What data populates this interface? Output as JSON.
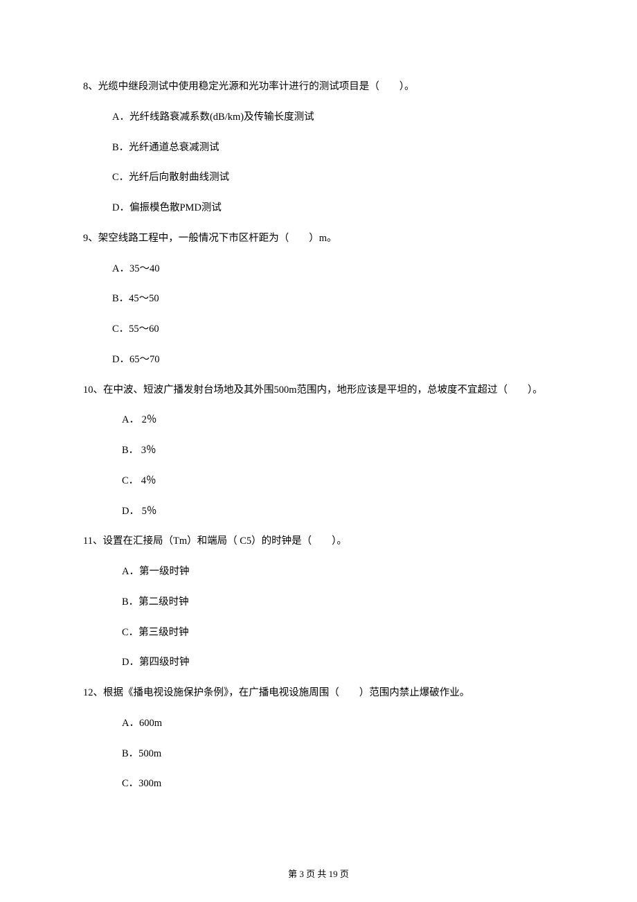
{
  "questions": [
    {
      "number": "8",
      "text": "8、光缆中继段测试中使用稳定光源和光功率计进行的测试项目是（　　）。",
      "options": [
        {
          "label": "A．",
          "text": "光纤线路衰减系数(dB/km)及传输长度测试"
        },
        {
          "label": "B．",
          "text": "光纤通道总衰减测试"
        },
        {
          "label": "C．",
          "text": "光纤后向散射曲线测试"
        },
        {
          "label": "D．",
          "text": "偏振模色散PMD测试"
        }
      ],
      "option_class": "option"
    },
    {
      "number": "9",
      "text": "9、架空线路工程中，一般情况下市区杆距为（　　）m。",
      "options": [
        {
          "label": "A．",
          "text": "35～40"
        },
        {
          "label": "B．",
          "text": "45～50"
        },
        {
          "label": "C．",
          "text": "55～60"
        },
        {
          "label": "D．",
          "text": "65～70"
        }
      ],
      "option_class": "option"
    },
    {
      "number": "10",
      "text": "10、在中波、短波广播发射台场地及其外围500m范围内，地形应该是平坦的，总坡度不宜超过（　　）。",
      "options": [
        {
          "label": "A．",
          "text": " 2％"
        },
        {
          "label": "B．",
          "text": " 3％"
        },
        {
          "label": "C．",
          "text": " 4％"
        },
        {
          "label": "D．",
          "text": " 5％"
        }
      ],
      "option_class": "option-indent2"
    },
    {
      "number": "11",
      "text": "11、设置在汇接局（Tm）和端局（ C5）的时钟是（　　）。",
      "options": [
        {
          "label": "A．",
          "text": "第一级时钟"
        },
        {
          "label": "B．",
          "text": "第二级时钟"
        },
        {
          "label": "C．",
          "text": "第三级时钟"
        },
        {
          "label": "D．",
          "text": "第四级时钟"
        }
      ],
      "option_class": "option-indent2"
    },
    {
      "number": "12",
      "text": "12、根据《播电视设施保护条例》，在广播电视设施周围（　　）范围内禁止爆破作业。",
      "options": [
        {
          "label": "A．",
          "text": "600m"
        },
        {
          "label": "B．",
          "text": "500m"
        },
        {
          "label": "C．",
          "text": "300m"
        }
      ],
      "option_class": "option-indent2"
    }
  ],
  "footer": "第 3 页 共 19 页"
}
